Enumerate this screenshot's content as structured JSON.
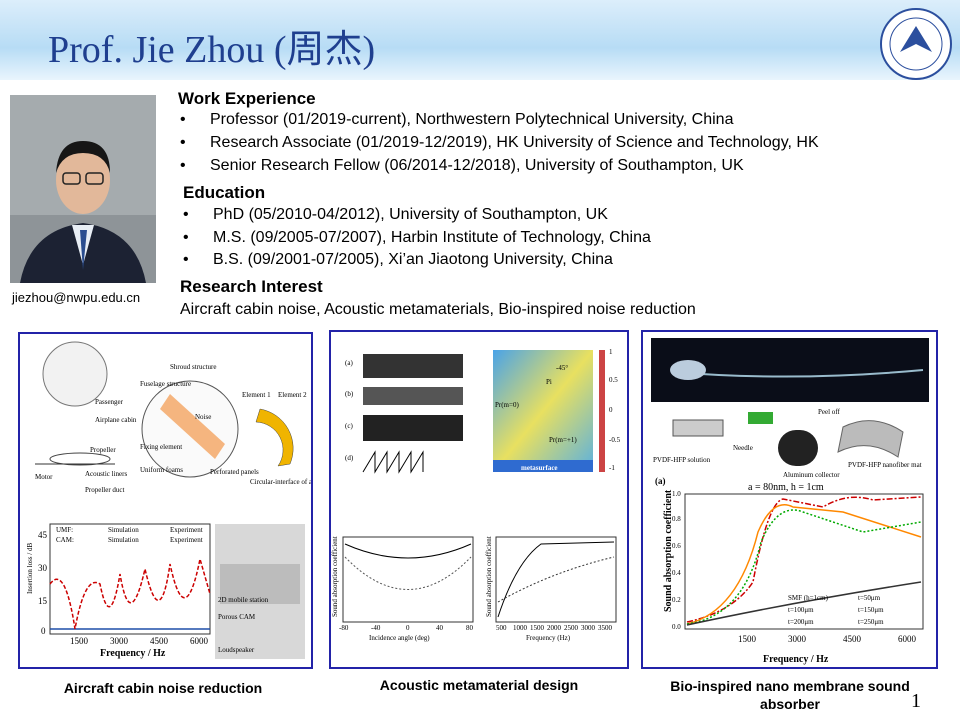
{
  "header": {
    "title": "Prof. Jie Zhou (周杰)"
  },
  "sidebar": {
    "email": "jiezhou@nwpu.edu.cn"
  },
  "work": {
    "heading": "Work Experience",
    "items": [
      "Professor (01/2019-current), Northwestern Polytechnical University, China",
      "Research Associate (01/2019-12/2019), HK University of Science and Technology, HK",
      "Senior Research Fellow (06/2014-12/2018), University of Southampton, UK"
    ]
  },
  "education": {
    "heading": "Education",
    "items": [
      "PhD (05/2010-04/2012), University of Southampton, UK",
      "M.S. (09/2005-07/2007), Harbin Institute of Technology, China",
      "B.S. (09/2001-07/2005),  Xi’an Jiaotong University, China"
    ]
  },
  "research": {
    "heading": "Research Interest",
    "text": "Aircraft cabin noise, Acoustic metamaterials, Bio-inspired noise reduction"
  },
  "panels": [
    {
      "caption": "Aircraft cabin noise reduction",
      "labels": [
        "Shroud structure",
        "Fuselage structure",
        "Passenger",
        "Airplane cabin",
        "Noise",
        "Element 1",
        "Element 2",
        "Fixing element",
        "Propeller",
        "Uniform foams",
        "Perforated panels",
        "Acoustic liners",
        "Motor",
        "Propeller duct",
        "Circular-interface of acoustic metamaterials"
      ],
      "chart": {
        "y_label": "Insertion loss / dB",
        "x_label": "Frequency / Hz",
        "xticks": [
          "1500",
          "3000",
          "4500",
          "6000"
        ],
        "yticks": [
          "0",
          "15",
          "30",
          "45"
        ],
        "legend": [
          "UMF:",
          "Simulation",
          "Experiment",
          "CAM:",
          "Simulation",
          "Experiment"
        ]
      },
      "photo_labels": [
        "2D mobile station",
        "Porous CAM",
        "Loudspeaker"
      ]
    },
    {
      "caption": "Acoustic metamaterial design",
      "labels": [
        "(a)",
        "(b)",
        "(c)",
        "(d)",
        "metasurface",
        "Pi",
        "Pr(m=0)",
        "Pr(m=+1)",
        "-45°"
      ],
      "colorbar": [
        "1",
        "0.5",
        "0",
        "-0.5",
        "-1"
      ],
      "chart1": {
        "x_label": "Incidence angle (deg)",
        "y_label": "Sound absorption coefficient",
        "xticks": [
          "-80",
          "-40",
          "0",
          "40",
          "80"
        ]
      },
      "chart2": {
        "x_label": "Frequency (Hz)",
        "y_label": "Sound absorption coefficient",
        "xticks": [
          "500",
          "1000",
          "1500",
          "2000",
          "2500",
          "3000",
          "3500"
        ]
      }
    },
    {
      "caption": "Bio-inspired nano membrane sound absorber",
      "labels": [
        "Peel off",
        "Needle",
        "PVDF-HFP solution",
        "Aluminum collector",
        "PVDF-HFP nanofiber mat",
        "(a)"
      ],
      "chart": {
        "title": "a = 80nm, h = 1cm",
        "y_label": "Sound absorption coefficient",
        "x_label": "Frequency / Hz",
        "xticks": [
          "1500",
          "3000",
          "4500",
          "6000"
        ],
        "yticks": [
          "0.0",
          "0.2",
          "0.4",
          "0.6",
          "0.8",
          "1.0"
        ],
        "legend": [
          "SMF (h=1cm)",
          "t=50μm",
          "t=100μm",
          "t=150μm",
          "t=200μm",
          "t=250μm"
        ]
      }
    }
  ],
  "page_number": "1"
}
